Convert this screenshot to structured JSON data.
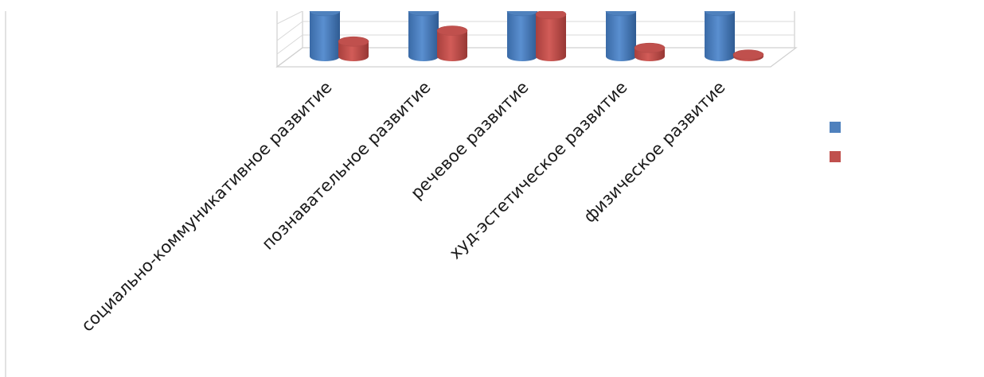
{
  "chart_data": {
    "type": "bar",
    "categories": [
      "социально-коммуникативное развитие",
      "познавательное развитие",
      "речевое развитие",
      "худ-эстетическое развитие",
      "физическое развитие"
    ],
    "series": [
      {
        "values": [
          100,
          100,
          100,
          100,
          100
        ]
      },
      {
        "values": [
          33,
          57,
          93,
          19,
          4
        ]
      }
    ],
    "colors": [
      "#4F81BD",
      "#C0504D"
    ],
    "grid": true,
    "legend_position": "right",
    "bar_shape": "cylinder-3d"
  }
}
